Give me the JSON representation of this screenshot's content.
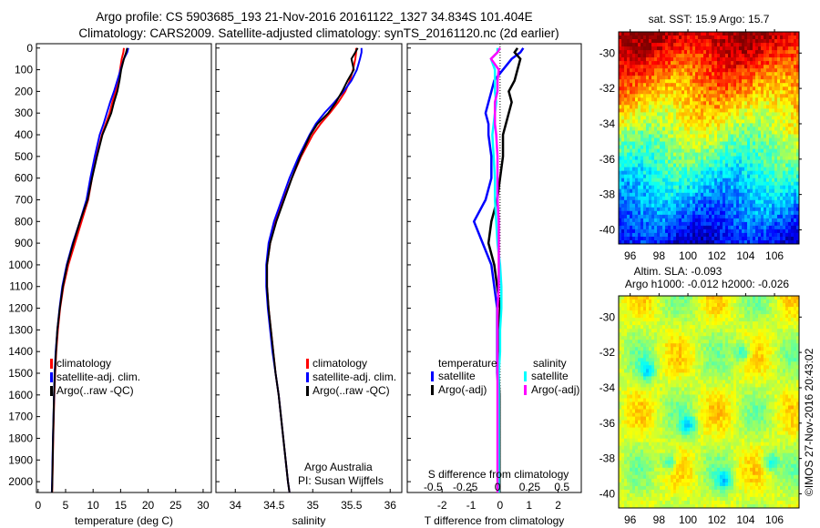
{
  "title": {
    "line1": "Argo profile: CS 5903685_193 21-Nov-2016 20161122_1327 34.834S 101.404E",
    "line2": "Climatology: CARS2009. Satellite-adjusted climatology: synTS_20161120.nc (2d earlier)"
  },
  "credit": "©IMOS 27-Nov-2016 20:43:02",
  "argo_info": {
    "line1": "Argo Australia",
    "line2": "PI: Susan Wijffels"
  },
  "colors": {
    "climatology": "#ff0000",
    "satellite": "#0000ff",
    "argo": "#000000",
    "sal_satellite": "#00ffff",
    "sal_argo": "#ff00ff"
  },
  "chart_data": [
    {
      "type": "line",
      "name": "temperature",
      "xlabel": "temperature (deg C)",
      "xlim": [
        -0.3,
        31.5
      ],
      "ylim": [
        2050,
        -20
      ],
      "xticks": [
        0,
        5,
        10,
        15,
        20,
        25,
        30
      ],
      "yticks": [
        0,
        100,
        200,
        300,
        400,
        500,
        600,
        700,
        800,
        900,
        1000,
        1100,
        1200,
        1300,
        1400,
        1500,
        1600,
        1700,
        1800,
        1900,
        2000
      ],
      "depth": [
        0,
        20,
        50,
        100,
        150,
        200,
        250,
        300,
        350,
        400,
        500,
        600,
        700,
        800,
        900,
        1000,
        1100,
        1200,
        1300,
        1400,
        1500,
        1600,
        1800,
        2000,
        2050
      ],
      "legend": [
        "climatology",
        "satellite-adj. clim.",
        "Argo(..raw -QC)"
      ],
      "series": [
        {
          "name": "climatology",
          "values": [
            15.6,
            15.5,
            15.2,
            14.9,
            14.6,
            14.1,
            13.5,
            13.0,
            12.3,
            11.6,
            10.6,
            9.8,
            9.1,
            7.9,
            6.7,
            5.5,
            4.6,
            4.0,
            3.6,
            3.3,
            3.1,
            2.95,
            2.75,
            2.6,
            2.55
          ]
        },
        {
          "name": "satellite-adj. clim.",
          "values": [
            16.4,
            16.2,
            15.6,
            15.0,
            14.4,
            13.8,
            13.1,
            12.5,
            11.9,
            11.2,
            10.3,
            9.5,
            8.8,
            7.6,
            6.3,
            5.2,
            4.4,
            3.9,
            3.5,
            3.2,
            3.0,
            2.9,
            2.7,
            2.55,
            2.5
          ]
        },
        {
          "name": "Argo(..raw -QC)",
          "values": [
            16.2,
            16.0,
            15.6,
            15.1,
            14.8,
            14.4,
            13.8,
            13.3,
            12.5,
            11.7,
            10.7,
            9.8,
            9.0,
            7.6,
            6.4,
            5.3,
            4.5,
            3.95,
            3.5,
            3.25,
            3.05,
            2.9,
            2.72,
            2.58,
            2.53
          ]
        }
      ]
    },
    {
      "type": "line",
      "name": "salinity",
      "xlabel": "salinity",
      "xlim": [
        33.75,
        36.15
      ],
      "ylim": [
        2050,
        -20
      ],
      "xticks": [
        34,
        34.5,
        35,
        35.5,
        36
      ],
      "depth": [
        0,
        20,
        50,
        100,
        150,
        200,
        250,
        300,
        350,
        400,
        500,
        600,
        700,
        800,
        900,
        1000,
        1100,
        1200,
        1300,
        1400,
        1500,
        1600,
        1800,
        2000,
        2050
      ],
      "legend": [
        "climatology",
        "satellite-adj. clim.",
        "Argo(..raw -QC)"
      ],
      "series": [
        {
          "name": "climatology",
          "values": [
            35.56,
            35.56,
            35.55,
            35.52,
            35.48,
            35.42,
            35.33,
            35.22,
            35.1,
            35.0,
            34.85,
            34.73,
            34.62,
            34.52,
            34.45,
            34.41,
            34.41,
            34.43,
            34.46,
            34.49,
            34.52,
            34.56,
            34.62,
            34.68,
            34.7
          ]
        },
        {
          "name": "satellite-adj. clim.",
          "values": [
            35.63,
            35.63,
            35.61,
            35.57,
            35.5,
            35.4,
            35.28,
            35.15,
            35.04,
            34.96,
            34.82,
            34.7,
            34.6,
            34.5,
            34.43,
            34.4,
            34.4,
            34.42,
            34.45,
            34.48,
            34.52,
            34.56,
            34.62,
            34.68,
            34.7
          ]
        },
        {
          "name": "Argo(..raw -QC)",
          "values": [
            35.58,
            35.55,
            35.5,
            35.53,
            35.45,
            35.38,
            35.3,
            35.2,
            35.06,
            34.97,
            34.84,
            34.73,
            34.63,
            34.53,
            34.45,
            34.41,
            34.41,
            34.43,
            34.46,
            34.49,
            34.52,
            34.56,
            34.62,
            34.68,
            34.7
          ]
        }
      ]
    },
    {
      "type": "line",
      "name": "differences",
      "xlabel": "T difference from climatology",
      "x2label": "S difference from climatology",
      "xlim": [
        -3.2,
        2.8
      ],
      "x2lim": [
        -0.7,
        0.65
      ],
      "ylim": [
        2050,
        -20
      ],
      "xticks": [
        -2,
        -1,
        0,
        1,
        2
      ],
      "x2ticks": [
        -0.5,
        -0.25,
        0,
        0.25,
        0.5
      ],
      "x2ticklabels": [
        "-0.5",
        "-0.25",
        "0",
        "0.25",
        "0.5"
      ],
      "depth": [
        0,
        20,
        50,
        100,
        150,
        200,
        250,
        300,
        350,
        400,
        500,
        600,
        700,
        800,
        900,
        1000,
        1100,
        1200,
        1300,
        1400,
        1500,
        1600,
        1800,
        2000,
        2050
      ],
      "legend_titles": [
        "temperature",
        "salinity"
      ],
      "legend": [
        "satellite",
        "Argo(-adj)",
        "satellite",
        "Argo(-adj)"
      ],
      "series": [
        {
          "name": "temperature satellite",
          "axis": "T",
          "values": [
            0.8,
            0.7,
            0.4,
            0.1,
            -0.2,
            -0.3,
            -0.4,
            -0.5,
            -0.4,
            -0.4,
            -0.3,
            -0.3,
            -0.5,
            -0.9,
            -0.6,
            -0.3,
            -0.2,
            -0.1,
            -0.1,
            -0.1,
            -0.1,
            -0.05,
            -0.05,
            -0.05,
            -0.05
          ]
        },
        {
          "name": "temperature Argo(-adj)",
          "axis": "T",
          "values": [
            0.6,
            0.5,
            0.7,
            0.6,
            0.5,
            0.3,
            0.4,
            0.3,
            0.2,
            0.1,
            0.1,
            0.0,
            -0.1,
            -0.3,
            -0.4,
            -0.2,
            -0.1,
            0.0,
            -0.05,
            -0.05,
            -0.05,
            -0.02,
            -0.02,
            -0.02,
            -0.02
          ]
        },
        {
          "name": "salinity satellite",
          "axis": "S",
          "values": [
            0.0,
            0.0,
            -0.05,
            -0.02,
            -0.02,
            -0.02,
            -0.01,
            -0.02,
            -0.03,
            -0.04,
            -0.03,
            -0.02,
            -0.02,
            -0.01,
            0.0,
            0.02,
            0.03,
            0.03,
            0.02,
            0.02,
            0.01,
            0.01,
            0.01,
            0.01,
            0.01
          ]
        },
        {
          "name": "salinity Argo(-adj)",
          "axis": "S",
          "values": [
            0.02,
            0.0,
            -0.05,
            0.01,
            0.0,
            0.0,
            -0.02,
            -0.02,
            -0.02,
            -0.01,
            0.0,
            0.0,
            0.0,
            0.01,
            0.01,
            0.01,
            0.01,
            0.0,
            0.0,
            0.0,
            0.0,
            0.0,
            0.0,
            0.0,
            0.0
          ]
        }
      ]
    },
    {
      "type": "heatmap",
      "name": "sst-map",
      "title": "sat. SST: 15.9 Argo: 15.7",
      "xlim": [
        95.2,
        107.7
      ],
      "ylim": [
        -40.8,
        -28.8
      ],
      "xticks": [
        96,
        98,
        100,
        102,
        104,
        106
      ],
      "yticks": [
        -30,
        -32,
        -34,
        -36,
        -38,
        -40
      ]
    },
    {
      "type": "heatmap",
      "name": "sla-map",
      "title1": "Altim. SLA: -0.093",
      "title2": "Argo h1000: -0.012 h2000: -0.026",
      "xlim": [
        95.2,
        107.7
      ],
      "ylim": [
        -40.8,
        -28.8
      ],
      "xticks": [
        96,
        98,
        100,
        102,
        104,
        106
      ],
      "yticks": [
        -30,
        -32,
        -34,
        -36,
        -38,
        -40
      ]
    }
  ]
}
